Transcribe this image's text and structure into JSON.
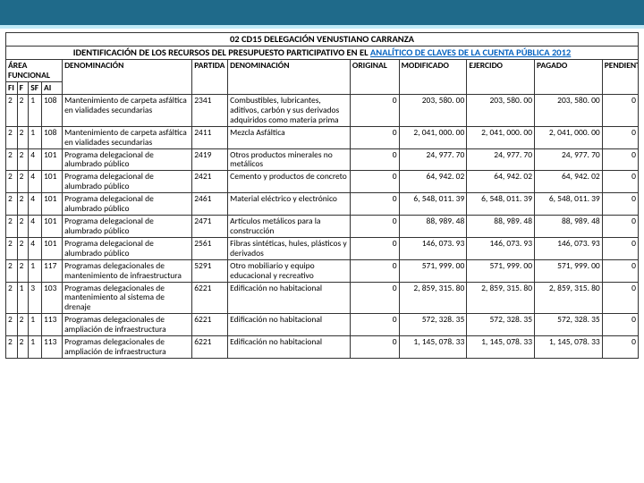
{
  "header_bar": {
    "color": "#1f6a8a",
    "accent": "#bfeaf7"
  },
  "title_line1": "02 CD15 DELEGACIÓN VENUSTIANO CARRANZA",
  "title_line2_prefix": "IDENTIFICACIÓN DE LOS RECURSOS DEL PRESUPUESTO PARTICIPATIVO EN EL ",
  "title_line2_link": "ANALÍTICO DE CLAVES DE LA CUENTA PÚBLICA 2012",
  "headers": {
    "area": "ÁREA FUNCIONAL",
    "den1": "DENOMINACIÓN",
    "partida": "PARTIDA",
    "den2": "DENOMINACIÓN",
    "original": "ORIGINAL",
    "modificado": "MODIFICADO",
    "ejercido": "EJERCIDO",
    "pagado": "PAGADO",
    "pendiente": "PENDIENTE",
    "fi": "FI",
    "f": "F",
    "sf": "SF",
    "ai": "AI"
  },
  "rows": [
    {
      "fi": "2",
      "f": "2",
      "sf": "1",
      "ai": "108",
      "den1": "Mantenimiento de carpeta asfáltica en vialidades secundarias",
      "partida": "2341",
      "den2": "Combustibles, lubricantes, aditivos, carbón y sus derivados adquiridos como materia prima",
      "orig": "0",
      "mod": "203, 580. 00",
      "eje": "203, 580. 00",
      "pag": "203, 580. 00",
      "pend": "0"
    },
    {
      "fi": "2",
      "f": "2",
      "sf": "1",
      "ai": "108",
      "den1": "Mantenimiento de carpeta asfáltica en vialidades secundarias",
      "partida": "2411",
      "den2": "Mezcla Asfáltica",
      "orig": "0",
      "mod": "2, 041, 000. 00",
      "eje": "2, 041, 000. 00",
      "pag": "2, 041, 000. 00",
      "pend": "0"
    },
    {
      "fi": "2",
      "f": "2",
      "sf": "4",
      "ai": "101",
      "den1": "Programa delegacional de alumbrado público",
      "partida": "2419",
      "den2": "Otros productos minerales no metálicos",
      "orig": "0",
      "mod": "24, 977. 70",
      "eje": "24, 977. 70",
      "pag": "24, 977. 70",
      "pend": "0"
    },
    {
      "fi": "2",
      "f": "2",
      "sf": "4",
      "ai": "101",
      "den1": "Programa delegacional de alumbrado público",
      "partida": "2421",
      "den2": "Cemento y productos de concreto",
      "orig": "0",
      "mod": "64, 942. 02",
      "eje": "64, 942. 02",
      "pag": "64, 942. 02",
      "pend": "0"
    },
    {
      "fi": "2",
      "f": "2",
      "sf": "4",
      "ai": "101",
      "den1": "Programa delegacional de alumbrado público",
      "partida": "2461",
      "den2": "Material eléctrico y electrónico",
      "orig": "0",
      "mod": "6, 548, 011. 39",
      "eje": "6, 548, 011. 39",
      "pag": "6, 548, 011. 39",
      "pend": "0"
    },
    {
      "fi": "2",
      "f": "2",
      "sf": "4",
      "ai": "101",
      "den1": "Programa delegacional de alumbrado público",
      "partida": "2471",
      "den2": "Artículos metálicos para la construcción",
      "orig": "0",
      "mod": "88, 989. 48",
      "eje": "88, 989. 48",
      "pag": "88, 989. 48",
      "pend": "0"
    },
    {
      "fi": "2",
      "f": "2",
      "sf": "4",
      "ai": "101",
      "den1": "Programa delegacional de alumbrado público",
      "partida": "2561",
      "den2": "Fibras sintéticas, hules, plásticos y derivados",
      "orig": "0",
      "mod": "146, 073. 93",
      "eje": "146, 073. 93",
      "pag": "146, 073. 93",
      "pend": "0"
    },
    {
      "fi": "2",
      "f": "2",
      "sf": "1",
      "ai": "117",
      "den1": "Programas delegacionales de mantenimiento de infraestructura",
      "partida": "5291",
      "den2": "Otro mobiliario y equipo educacional y recreativo",
      "orig": "0",
      "mod": "571, 999. 00",
      "eje": "571, 999. 00",
      "pag": "571, 999. 00",
      "pend": "0"
    },
    {
      "fi": "2",
      "f": "1",
      "sf": "3",
      "ai": "103",
      "den1": "Programas delegacionales de mantenimiento al sistema de drenaje",
      "partida": "6221",
      "den2": "Edificación no habitacional",
      "orig": "0",
      "mod": "2, 859, 315. 80",
      "eje": "2, 859, 315. 80",
      "pag": "2, 859, 315. 80",
      "pend": "0"
    },
    {
      "fi": "2",
      "f": "2",
      "sf": "1",
      "ai": "113",
      "den1": "Programas delegacionales de ampliación de infraestructura",
      "partida": "6221",
      "den2": "Edificación no habitacional",
      "orig": "0",
      "mod": "572, 328. 35",
      "eje": "572, 328. 35",
      "pag": "572, 328. 35",
      "pend": "0"
    },
    {
      "fi": "2",
      "f": "2",
      "sf": "1",
      "ai": "113",
      "den1": "Programas delegacionales de ampliación de infraestructura",
      "partida": "6221",
      "den2": "Edificación no habitacional",
      "orig": "0",
      "mod": "1, 145, 078. 33",
      "eje": "1, 145, 078. 33",
      "pag": "1, 145, 078. 33",
      "pend": "0"
    }
  ]
}
